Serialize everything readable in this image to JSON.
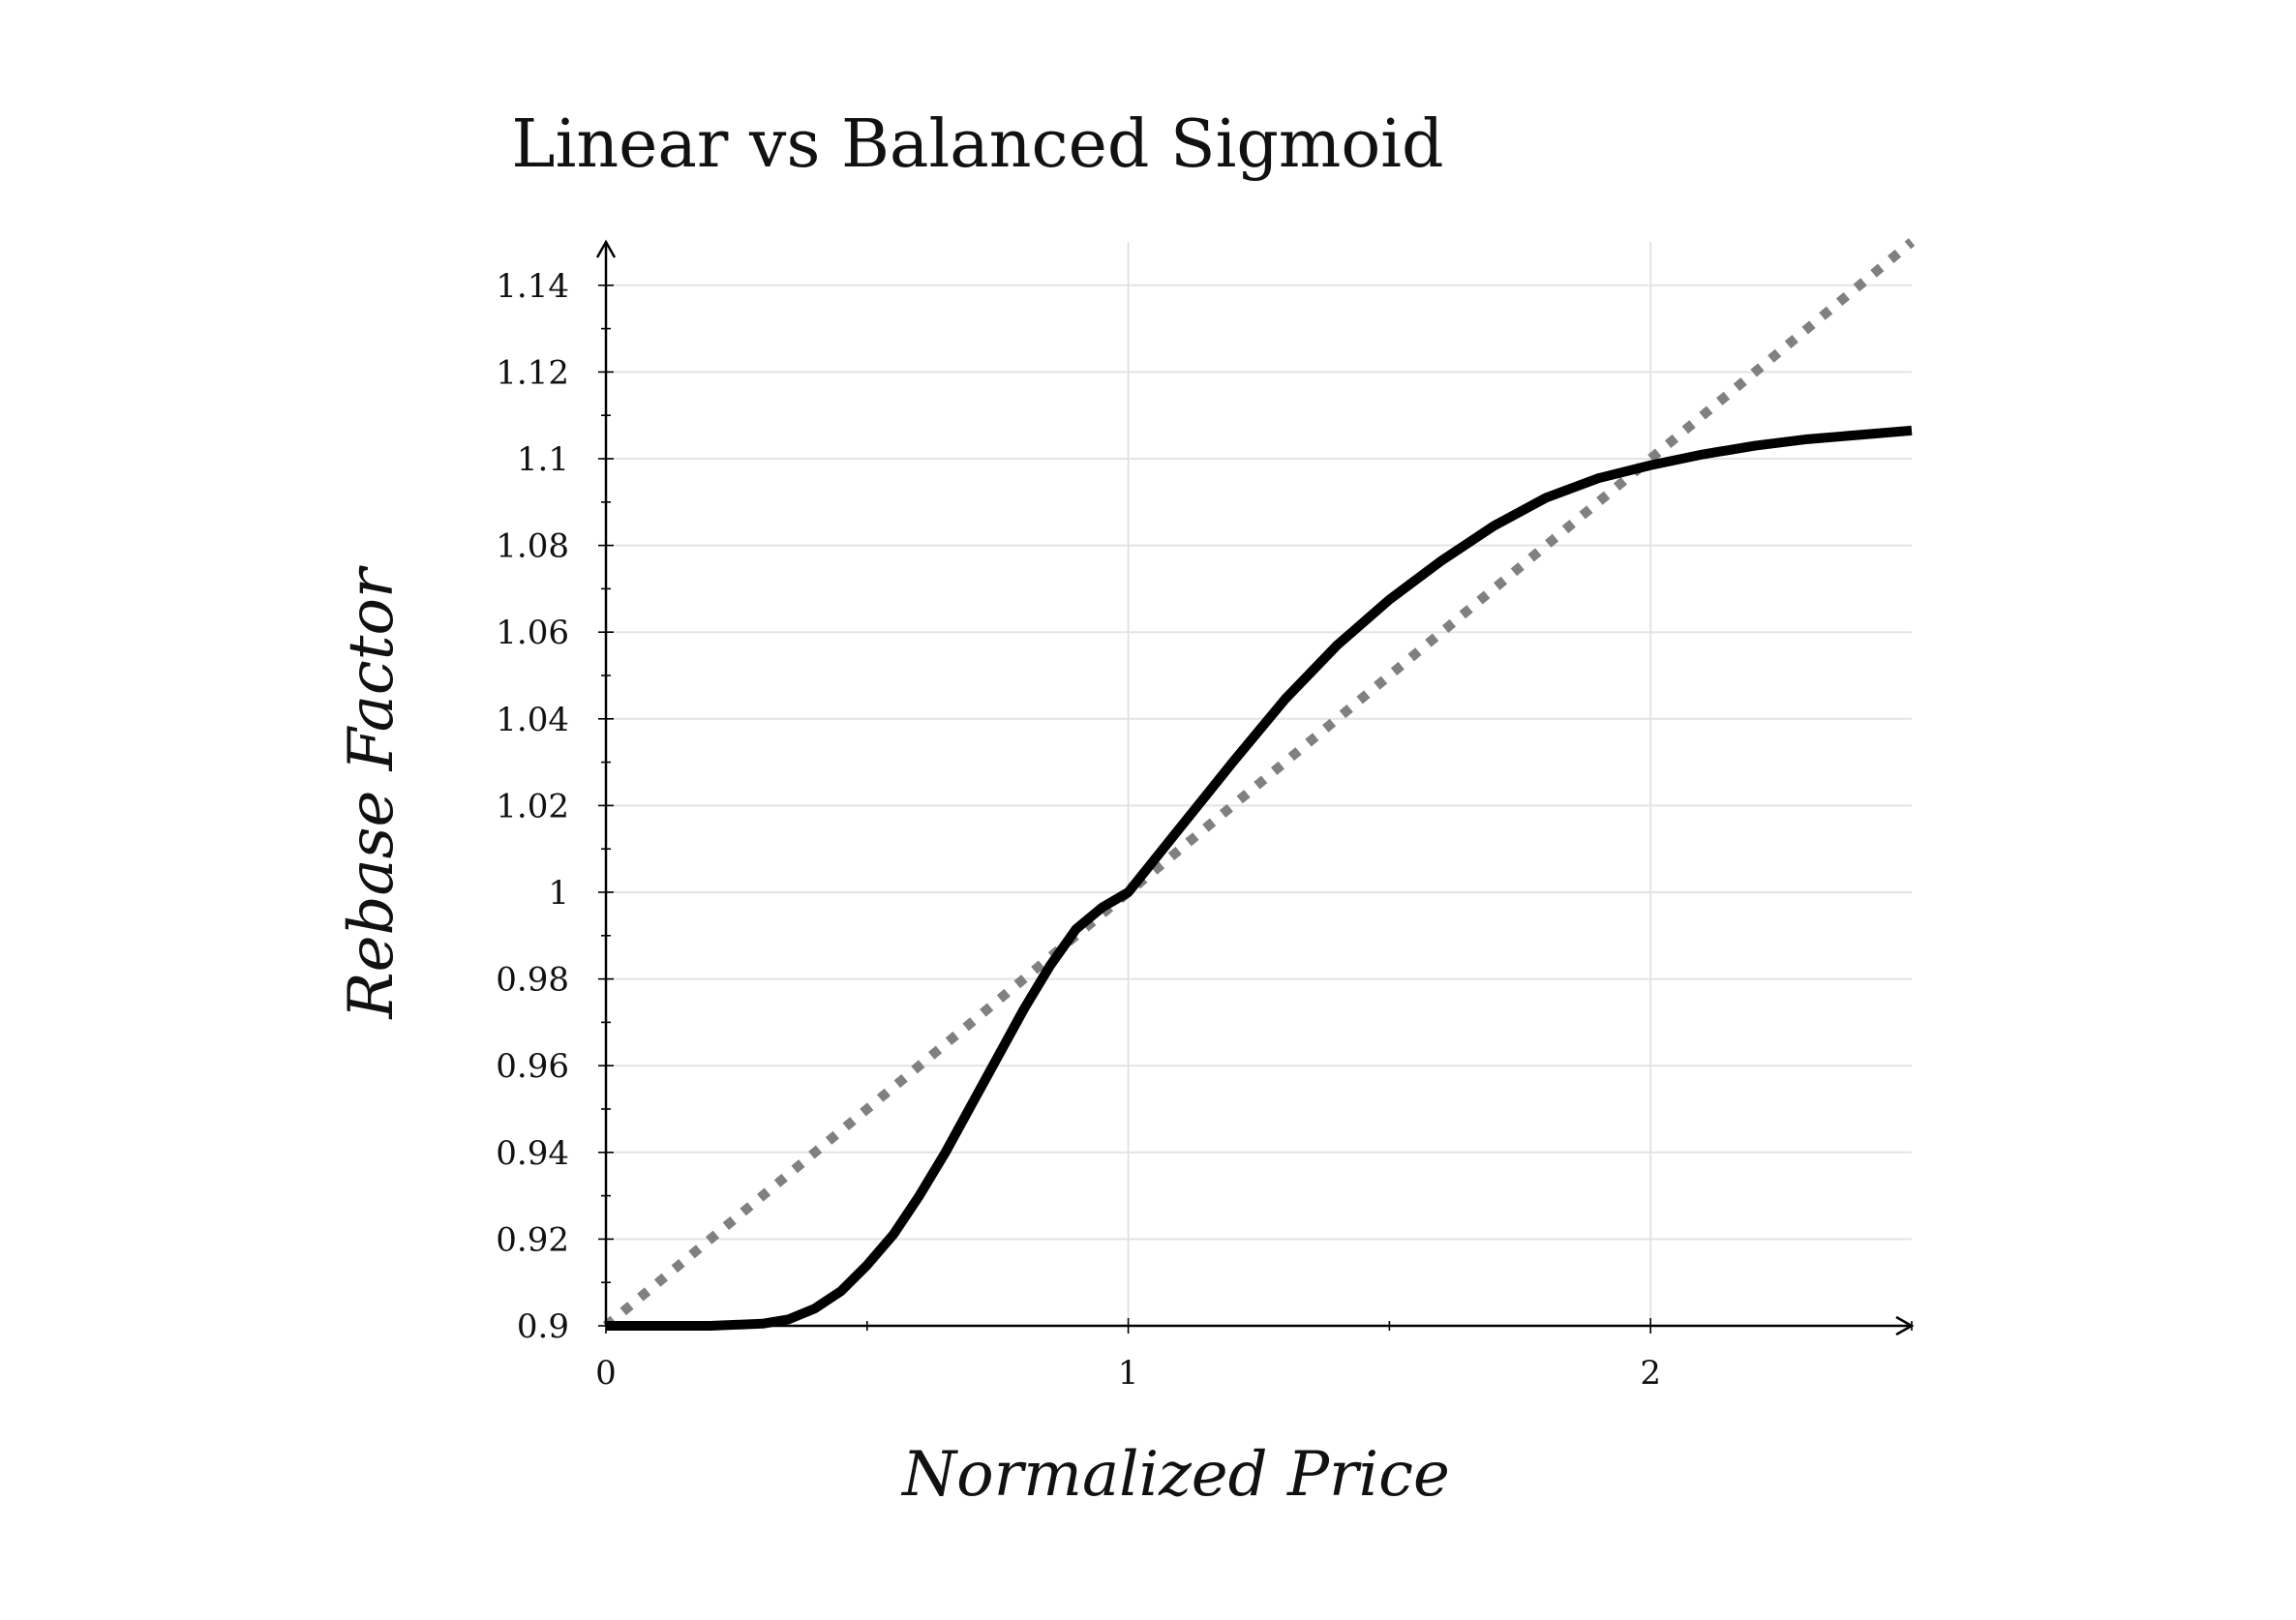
{
  "chart_data": {
    "type": "line",
    "title": "Linear vs Balanced Sigmoid",
    "xlabel": "Normalized Price",
    "ylabel": "Rebase Factor",
    "xlim": [
      0,
      2.5
    ],
    "ylim": [
      0.9,
      1.15
    ],
    "xticks": [
      0,
      1,
      2
    ],
    "xtick_labels": [
      "0",
      "1",
      "2"
    ],
    "yticks": [
      0.9,
      0.92,
      0.94,
      0.96,
      0.98,
      1,
      1.02,
      1.04,
      1.06,
      1.08,
      1.1,
      1.12,
      1.14
    ],
    "ytick_labels": [
      "0.9",
      "0.92",
      "0.94",
      "0.96",
      "0.98",
      "1",
      "1.02",
      "1.04",
      "1.06",
      "1.08",
      "1.1",
      "1.12",
      "1.14"
    ],
    "grid": true,
    "series": [
      {
        "style": "dotted",
        "color": "#808080",
        "x": [
          0,
          2.5
        ],
        "y": [
          0.9,
          1.15
        ]
      },
      {
        "style": "solid",
        "color": "#000000",
        "x": [
          0,
          0.1,
          0.2,
          0.3,
          0.35,
          0.4,
          0.45,
          0.5,
          0.55,
          0.6,
          0.65,
          0.7,
          0.75,
          0.8,
          0.85,
          0.9,
          0.95,
          1.0,
          1.05,
          1.1,
          1.15,
          1.2,
          1.3,
          1.4,
          1.5,
          1.6,
          1.7,
          1.8,
          1.9,
          2.0,
          2.1,
          2.2,
          2.3,
          2.4,
          2.5
        ],
        "y": [
          0.9,
          0.9,
          0.9,
          0.9005,
          0.9015,
          0.904,
          0.908,
          0.914,
          0.921,
          0.93,
          0.94,
          0.951,
          0.962,
          0.973,
          0.983,
          0.9915,
          0.9965,
          1.0,
          1.0075,
          1.015,
          1.0225,
          1.03,
          1.0445,
          1.057,
          1.0675,
          1.0765,
          1.0845,
          1.091,
          1.0955,
          1.0985,
          1.101,
          1.103,
          1.1045,
          1.1055,
          1.1065
        ]
      }
    ]
  }
}
